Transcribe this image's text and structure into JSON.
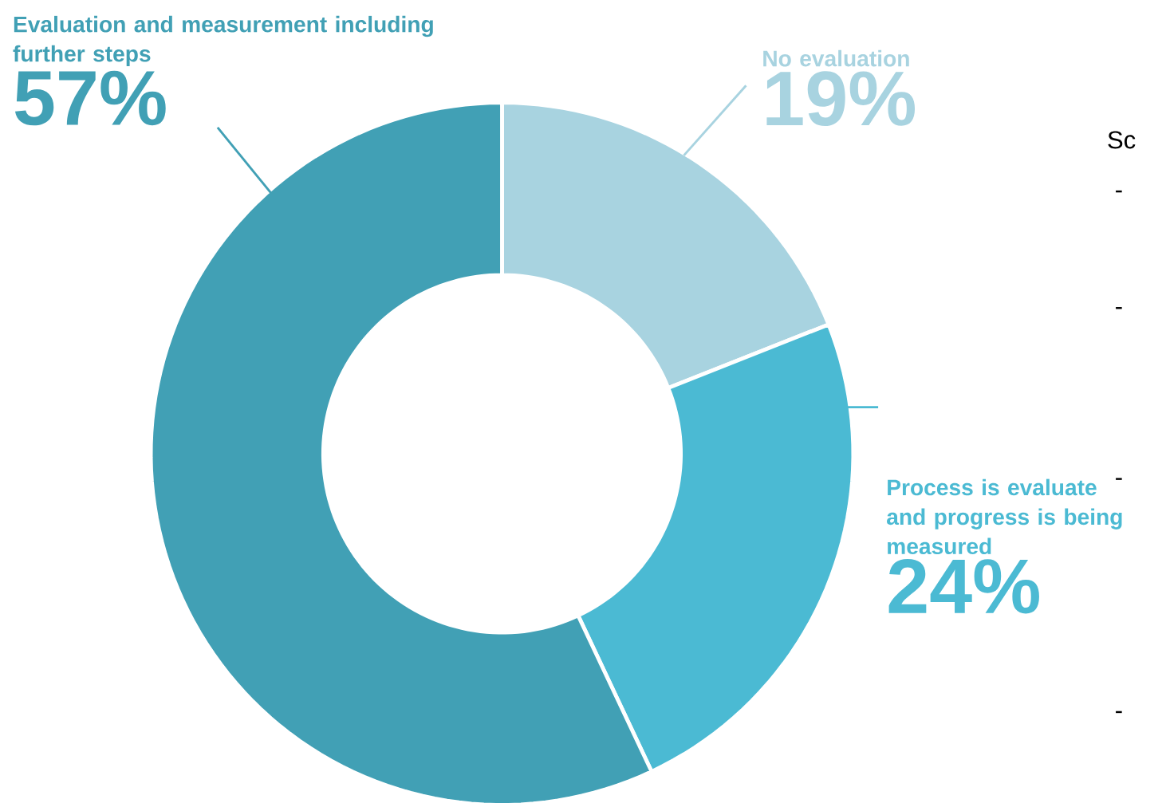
{
  "chart_data": {
    "type": "donut",
    "categories": [
      "No evaluation",
      "Process is evaluate and progress is being measured",
      "Evaluation and measurement including further steps"
    ],
    "values": [
      19,
      24,
      57
    ],
    "colors": [
      "#a8d3e0",
      "#4bbad3",
      "#41a0b5"
    ],
    "value_labels": [
      "19%",
      "24%",
      "57%"
    ],
    "annotations": [
      "Sc",
      "-",
      "-",
      "-",
      "-"
    ]
  }
}
